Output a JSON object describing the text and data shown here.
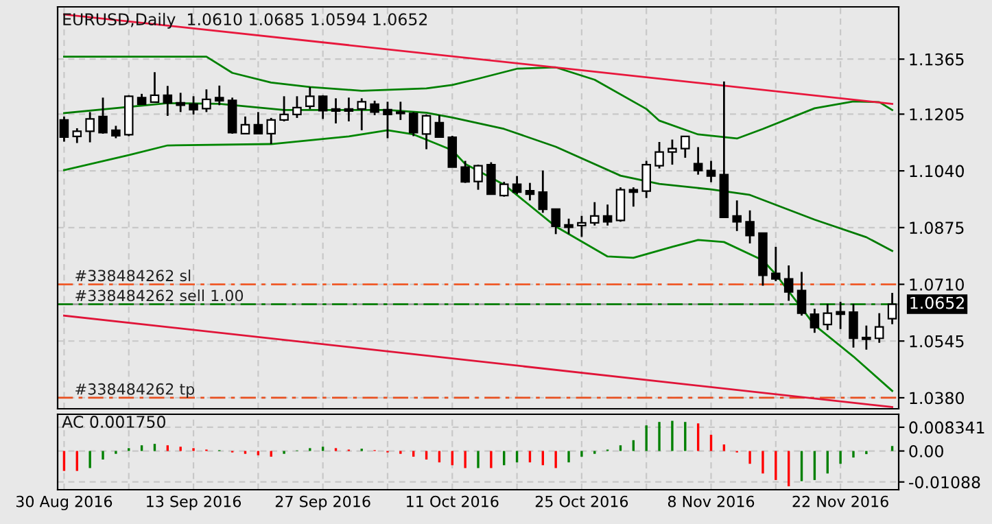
{
  "chart_data": [
    {
      "type": "candlestick",
      "title": "EURUSD,Daily  1.0610 1.0685 1.0594 1.0652",
      "categories": [
        null,
        null,
        null,
        null,
        null,
        null,
        null,
        null,
        null,
        null,
        null,
        null,
        null,
        null,
        null,
        null,
        null,
        null,
        null,
        null,
        null,
        null,
        null,
        null,
        null,
        null,
        null,
        null,
        null,
        null,
        null,
        null,
        null,
        null,
        null,
        null,
        null,
        null,
        null,
        null,
        null,
        null,
        null,
        null,
        null,
        null,
        null,
        null,
        null,
        null,
        null,
        null,
        null,
        null,
        null,
        null,
        null,
        null,
        null,
        null,
        null,
        null,
        null,
        null,
        null
      ],
      "ohlc": [
        [
          1.1188,
          1.1198,
          1.1125,
          1.1138
        ],
        [
          1.114,
          1.1164,
          1.1121,
          1.1155
        ],
        [
          1.1155,
          1.1211,
          1.1123,
          1.1191
        ],
        [
          1.1198,
          1.1253,
          1.1148,
          1.1151
        ],
        [
          1.1158,
          1.1171,
          1.1135,
          1.1142
        ],
        [
          1.1145,
          1.126,
          1.1141,
          1.1257
        ],
        [
          1.1253,
          1.1264,
          1.1233,
          1.1234
        ],
        [
          1.124,
          1.1327,
          1.1238,
          1.126
        ],
        [
          1.126,
          1.1287,
          1.12,
          1.1238
        ],
        [
          1.1238,
          1.1267,
          1.1211,
          1.1231
        ],
        [
          1.1234,
          1.1257,
          1.1204,
          1.1218
        ],
        [
          1.1221,
          1.1277,
          1.1211,
          1.1248
        ],
        [
          1.1253,
          1.1288,
          1.1231,
          1.1244
        ],
        [
          1.1245,
          1.1253,
          1.1148,
          1.1151
        ],
        [
          1.1148,
          1.1198,
          1.1148,
          1.1174
        ],
        [
          1.1174,
          1.1211,
          1.1148,
          1.1148
        ],
        [
          1.1148,
          1.1194,
          1.1118,
          1.1188
        ],
        [
          1.1188,
          1.1257,
          1.1184,
          1.1204
        ],
        [
          1.1204,
          1.1257,
          1.1194,
          1.1224
        ],
        [
          1.1228,
          1.1284,
          1.122,
          1.1257
        ],
        [
          1.1257,
          1.126,
          1.1191,
          1.1215
        ],
        [
          1.122,
          1.1251,
          1.1178,
          1.1214
        ],
        [
          1.122,
          1.1253,
          1.1184,
          1.1214
        ],
        [
          1.122,
          1.1251,
          1.1158,
          1.1241
        ],
        [
          1.1234,
          1.1244,
          1.1202,
          1.1211
        ],
        [
          1.1218,
          1.1241,
          1.1135,
          1.1204
        ],
        [
          1.1211,
          1.1241,
          1.1188,
          1.1207
        ],
        [
          1.1207,
          1.1211,
          1.1141,
          1.1151
        ],
        [
          1.1147,
          1.1204,
          1.1103,
          1.12
        ],
        [
          1.118,
          1.1202,
          1.1138,
          1.1138
        ],
        [
          1.1138,
          1.1142,
          1.1051,
          1.1051
        ],
        [
          1.1051,
          1.1069,
          1.1005,
          1.1008
        ],
        [
          1.1009,
          1.1058,
          1.0985,
          1.1055
        ],
        [
          1.1058,
          1.1065,
          1.0972,
          1.0972
        ],
        [
          1.0968,
          1.1008,
          1.0965,
          1.1001
        ],
        [
          1.1001,
          1.1025,
          1.0972,
          1.0978
        ],
        [
          1.0982,
          1.1005,
          1.0954,
          1.0972
        ],
        [
          1.0978,
          1.1041,
          1.0918,
          1.0928
        ],
        [
          1.0929,
          1.0929,
          1.0856,
          1.0879
        ],
        [
          1.0883,
          1.0901,
          1.0856,
          1.0876
        ],
        [
          1.0881,
          1.0909,
          1.0848,
          1.0889
        ],
        [
          1.0889,
          1.0949,
          1.0881,
          1.0909
        ],
        [
          1.0909,
          1.0942,
          1.0881,
          1.0892
        ],
        [
          1.0896,
          1.0992,
          1.0892,
          1.0985
        ],
        [
          1.0985,
          1.0992,
          1.0936,
          1.0978
        ],
        [
          1.0981,
          1.1069,
          1.0961,
          1.1058
        ],
        [
          1.1055,
          1.1124,
          1.1047,
          1.1095
        ],
        [
          1.1095,
          1.1131,
          1.1058,
          1.1105
        ],
        [
          1.1105,
          1.114,
          1.1078,
          1.114
        ],
        [
          1.1061,
          1.1109,
          1.1029,
          1.1041
        ],
        [
          1.1041,
          1.1069,
          1.1007,
          1.1025
        ],
        [
          1.1029,
          1.13,
          1.0905,
          1.0905
        ],
        [
          1.0909,
          1.0954,
          1.0865,
          1.0892
        ],
        [
          1.0892,
          1.0925,
          1.0829,
          1.0852
        ],
        [
          1.0859,
          1.0859,
          1.0706,
          1.0736
        ],
        [
          1.0742,
          1.0819,
          1.0719,
          1.0726
        ],
        [
          1.0726,
          1.0765,
          1.0662,
          1.0688
        ],
        [
          1.0692,
          1.0746,
          1.0619,
          1.0626
        ],
        [
          1.0623,
          1.0639,
          1.0569,
          1.0584
        ],
        [
          1.0593,
          1.0653,
          1.0577,
          1.0626
        ],
        [
          1.063,
          1.0659,
          1.058,
          1.0623
        ],
        [
          1.0629,
          1.0653,
          1.0526,
          1.0553
        ],
        [
          1.0555,
          1.059,
          1.052,
          1.055
        ],
        [
          1.0553,
          1.0626,
          1.054,
          1.0586
        ],
        [
          1.061,
          1.0685,
          1.0594,
          1.0652
        ]
      ],
      "series": [
        {
          "type": "line",
          "color": "#008000",
          "values": [
            1.1372,
            null,
            null,
            null,
            null,
            null,
            null,
            null,
            null,
            null,
            null,
            1.1372,
            null,
            1.1325,
            null,
            null,
            1.1297,
            null,
            null,
            1.1284,
            null,
            null,
            null,
            1.1273,
            null,
            null,
            null,
            null,
            1.128,
            null,
            1.129,
            null,
            1.1308,
            null,
            null,
            1.1337,
            null,
            null,
            1.1341,
            null,
            null,
            1.1305,
            null,
            null,
            null,
            1.122,
            1.1186,
            null,
            null,
            1.1146,
            null,
            null,
            1.1134,
            null,
            1.1162,
            null,
            null,
            null,
            1.1222,
            null,
            null,
            1.1242,
            null,
            1.124,
            1.1217
          ]
        },
        {
          "type": "line",
          "color": "#007a00",
          "values": [
            1.1208,
            null,
            null,
            null,
            null,
            null,
            null,
            null,
            1.1237,
            null,
            null,
            null,
            1.1235,
            null,
            null,
            null,
            null,
            1.1217,
            null,
            null,
            null,
            null,
            null,
            null,
            null,
            1.1217,
            null,
            null,
            1.1209,
            null,
            1.1195,
            null,
            null,
            null,
            1.1162,
            null,
            null,
            null,
            1.111,
            null,
            null,
            null,
            null,
            1.1026,
            null,
            null,
            1.1002,
            null,
            null,
            null,
            1.0986,
            null,
            null,
            1.097,
            null,
            null,
            null,
            null,
            1.0898,
            null,
            null,
            null,
            1.0847,
            null,
            1.0807
          ]
        },
        {
          "type": "line",
          "color": "#008600",
          "values": [
            1.1042,
            null,
            null,
            null,
            null,
            1.1086,
            null,
            null,
            1.1114,
            null,
            null,
            null,
            null,
            null,
            null,
            null,
            1.1118,
            null,
            null,
            null,
            null,
            null,
            1.114,
            null,
            null,
            1.1158,
            null,
            1.1146,
            null,
            null,
            1.11,
            1.106,
            null,
            null,
            1.1,
            null,
            null,
            null,
            1.0878,
            null,
            null,
            null,
            1.0791,
            null,
            1.0787,
            null,
            null,
            1.0819,
            null,
            1.0839,
            null,
            1.0833,
            null,
            null,
            1.078,
            1.0739,
            null,
            null,
            1.0591,
            null,
            null,
            1.05,
            null,
            null,
            1.04
          ]
        },
        {
          "type": "line",
          "color": "#e8173c",
          "values": [
            1.1495,
            null,
            null,
            null,
            null,
            null,
            null,
            null,
            null,
            null,
            null,
            null,
            null,
            null,
            null,
            null,
            null,
            null,
            null,
            null,
            null,
            null,
            null,
            null,
            null,
            null,
            null,
            null,
            null,
            null,
            null,
            null,
            null,
            null,
            null,
            null,
            null,
            null,
            null,
            null,
            null,
            null,
            null,
            null,
            null,
            null,
            null,
            null,
            null,
            null,
            null,
            null,
            null,
            null,
            null,
            null,
            null,
            null,
            null,
            null,
            null,
            null,
            null,
            null,
            1.1235
          ]
        },
        {
          "type": "line",
          "color": "#e01438",
          "values": [
            1.0619,
            null,
            null,
            null,
            null,
            null,
            null,
            null,
            null,
            null,
            null,
            null,
            null,
            null,
            null,
            null,
            null,
            null,
            null,
            null,
            null,
            null,
            null,
            null,
            null,
            null,
            null,
            null,
            null,
            null,
            null,
            null,
            null,
            null,
            null,
            null,
            null,
            null,
            null,
            null,
            null,
            null,
            null,
            null,
            null,
            null,
            null,
            null,
            null,
            null,
            null,
            null,
            null,
            null,
            null,
            null,
            null,
            null,
            null,
            null,
            null,
            null,
            null,
            null,
            1.0353
          ]
        }
      ],
      "ylim": [
        1.0348,
        1.1517
      ],
      "yticks": [
        1.1365,
        1.1205,
        {
          "value": 1.104,
          "label": "1.1040"
        },
        1.0875,
        {
          "value": 1.071,
          "label": "1.0710"
        },
        1.0545,
        {
          "value": 1.038,
          "label": "1.0380"
        }
      ],
      "ref_lines": [
        {
          "axis": "y",
          "value": 1.071,
          "label": "#338484262 sl",
          "color": "#f05a28",
          "line_style": "dashed"
        },
        {
          "axis": "y",
          "value": 1.0652,
          "label": "#338484262 sell 1.00",
          "color": "#008000",
          "line_style": "dashed"
        },
        {
          "axis": "y",
          "value": 1.038,
          "label": "#338484262 tp",
          "color": "#e85020",
          "line_style": "dashed"
        },
        {
          "axis": "y",
          "value": 1.0652,
          "label": "1.0652",
          "color": "#a0a0a0",
          "line_style": "solid"
        }
      ],
      "grid": true,
      "tick_labels": "y"
    },
    {
      "type": "bar",
      "title": "AC 0.001750",
      "categories": [
        "30 Aug 2016",
        null,
        null,
        null,
        null,
        null,
        null,
        null,
        null,
        null,
        "13 Sep 2016",
        null,
        null,
        null,
        null,
        null,
        null,
        null,
        null,
        null,
        "27 Sep 2016",
        null,
        null,
        null,
        null,
        null,
        null,
        null,
        null,
        null,
        "11 Oct 2016",
        null,
        null,
        null,
        null,
        null,
        null,
        null,
        null,
        null,
        "25 Oct 2016",
        null,
        null,
        null,
        null,
        null,
        null,
        null,
        null,
        null,
        "8 Nov 2016",
        null,
        null,
        null,
        null,
        null,
        null,
        null,
        null,
        null,
        "22 Nov 2016",
        null,
        null,
        null,
        null
      ],
      "values": [
        -0.007,
        -0.007,
        -0.006,
        -0.003,
        -0.001,
        0.001,
        0.002,
        0.0025,
        0.002,
        0.0015,
        0.001,
        0.0005,
        0.0003,
        -0.0005,
        -0.001,
        -0.0015,
        -0.002,
        -0.001,
        0.0002,
        0.001,
        0.0015,
        0.001,
        0.0005,
        0.0008,
        0.0003,
        -0.0005,
        -0.001,
        -0.002,
        -0.003,
        -0.004,
        -0.005,
        -0.006,
        -0.006,
        -0.006,
        -0.005,
        -0.004,
        -0.004,
        -0.005,
        -0.006,
        -0.004,
        -0.002,
        -0.001,
        0.0005,
        0.002,
        0.0038,
        0.009,
        0.0102,
        0.0106,
        0.0102,
        0.0097,
        0.0057,
        0.0023,
        -0.0005,
        -0.0045,
        -0.0079,
        -0.0102,
        -0.0124,
        -0.0106,
        -0.0102,
        -0.0079,
        -0.0045,
        -0.0023,
        -0.0011,
        null,
        0.00175
      ],
      "colors": [
        "#ff0000",
        "#ff0000",
        "#008000",
        "#008000",
        "#008000",
        "#008000",
        "#008000",
        "#008000",
        "#ff0000",
        "#ff0000",
        "#ff0000",
        "#ff0000",
        "#008000",
        "#ff0000",
        "#ff0000",
        "#ff0000",
        "#ff0000",
        "#008000",
        "#008000",
        "#008000",
        "#008000",
        "#ff0000",
        "#ff0000",
        "#008000",
        "#ff0000",
        "#ff0000",
        "#ff0000",
        "#ff0000",
        "#ff0000",
        "#ff0000",
        "#ff0000",
        "#ff0000",
        "#008000",
        "#ff0000",
        "#008000",
        "#008000",
        "#ff0000",
        "#ff0000",
        "#ff0000",
        "#008000",
        "#008000",
        "#008000",
        "#008000",
        "#008000",
        "#008000",
        "#008000",
        "#008000",
        "#008000",
        "#008000",
        "#ff0000",
        "#ff0000",
        "#ff0000",
        "#ff0000",
        "#ff0000",
        "#ff0000",
        "#ff0000",
        "#ff0000",
        "#008000",
        "#008000",
        "#008000",
        "#008000",
        "#008000",
        "#008000",
        "#ff0000",
        "#008000"
      ],
      "ylim": [
        -0.0136,
        0.0129
      ],
      "yticks": [
        {
          "value": 0.008341,
          "label": "0.008341"
        },
        {
          "value": 0,
          "label": "0.00"
        },
        {
          "value": -0.01088,
          "label": "-0.01088"
        }
      ],
      "grid": true
    }
  ]
}
